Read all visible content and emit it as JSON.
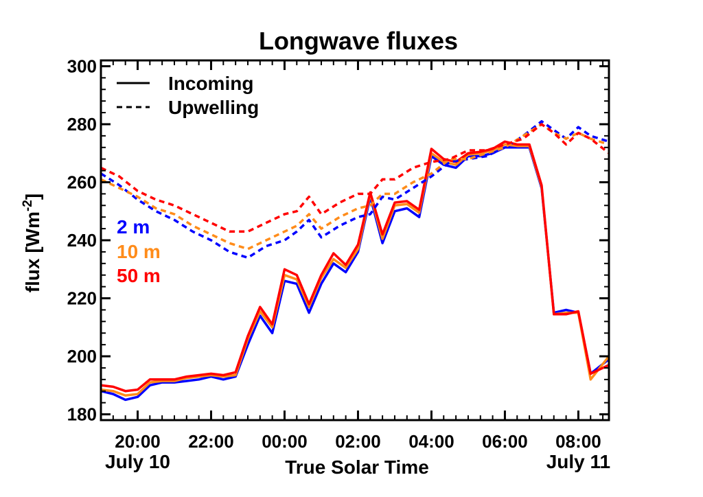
{
  "chart_data": {
    "type": "line",
    "title": "Longwave fluxes",
    "xlabel": "True Solar Time",
    "ylabel": "flux [Wm",
    "ylabel_sup": "-2",
    "ylabel_close": "]",
    "ylim": [
      178,
      302
    ],
    "xlim": [
      "2024-07-10T19:00",
      "2024-07-11T08:50"
    ],
    "yticks": [
      180,
      200,
      220,
      240,
      260,
      280,
      300
    ],
    "xticks": [
      {
        "label": "20:00",
        "time": "2024-07-10T20:00"
      },
      {
        "label": "22:00",
        "time": "2024-07-10T22:00"
      },
      {
        "label": "00:00",
        "time": "2024-07-11T00:00"
      },
      {
        "label": "02:00",
        "time": "2024-07-11T02:00"
      },
      {
        "label": "04:00",
        "time": "2024-07-11T04:00"
      },
      {
        "label": "06:00",
        "time": "2024-07-11T06:00"
      },
      {
        "label": "08:00",
        "time": "2024-07-11T08:00"
      }
    ],
    "date_labels": [
      {
        "label": "July 10",
        "time": "2024-07-10T20:00"
      },
      {
        "label": "July 11",
        "time": "2024-07-11T08:00"
      }
    ],
    "grid": false,
    "legend": {
      "position": "top-left",
      "entries": [
        {
          "label": "Incoming",
          "style": "solid"
        },
        {
          "label": "Upwelling",
          "style": "dashed"
        }
      ]
    },
    "height_labels": [
      {
        "label": "2 m",
        "color": "#0000ff"
      },
      {
        "label": "10 m",
        "color": "#ff8c1a"
      },
      {
        "label": "50 m",
        "color": "#ff0000"
      }
    ],
    "series": [
      {
        "type": "Incoming",
        "height": "2 m",
        "color": "#0000ff",
        "style": "solid",
        "x": [
          "2024-07-10T19:00",
          "2024-07-10T19:20",
          "2024-07-10T19:40",
          "2024-07-10T20:00",
          "2024-07-10T20:20",
          "2024-07-10T20:40",
          "2024-07-10T21:00",
          "2024-07-10T21:20",
          "2024-07-10T21:40",
          "2024-07-10T22:00",
          "2024-07-10T22:20",
          "2024-07-10T22:40",
          "2024-07-10T23:00",
          "2024-07-10T23:20",
          "2024-07-10T23:40",
          "2024-07-11T00:00",
          "2024-07-11T00:20",
          "2024-07-11T00:40",
          "2024-07-11T01:00",
          "2024-07-11T01:20",
          "2024-07-11T01:40",
          "2024-07-11T02:00",
          "2024-07-11T02:20",
          "2024-07-11T02:40",
          "2024-07-11T03:00",
          "2024-07-11T03:20",
          "2024-07-11T03:40",
          "2024-07-11T04:00",
          "2024-07-11T04:20",
          "2024-07-11T04:40",
          "2024-07-11T05:00",
          "2024-07-11T05:20",
          "2024-07-11T05:40",
          "2024-07-11T06:00",
          "2024-07-11T06:20",
          "2024-07-11T06:40",
          "2024-07-11T07:00",
          "2024-07-11T07:20",
          "2024-07-11T07:40",
          "2024-07-11T08:00",
          "2024-07-11T08:20",
          "2024-07-11T08:50"
        ],
        "values": [
          188,
          187,
          185,
          186,
          190,
          191,
          191,
          191.5,
          192,
          193,
          192,
          193,
          204,
          214,
          208,
          226,
          225,
          215,
          225,
          232,
          229,
          236,
          255,
          239,
          250,
          251,
          248,
          269,
          266,
          265,
          269,
          269,
          270,
          272,
          272,
          272,
          258,
          215,
          216,
          215,
          194,
          199
        ]
      },
      {
        "type": "Incoming",
        "height": "10 m",
        "color": "#ff8c1a",
        "style": "solid",
        "x": [
          "2024-07-10T19:00",
          "2024-07-10T19:20",
          "2024-07-10T19:40",
          "2024-07-10T20:00",
          "2024-07-10T20:20",
          "2024-07-10T20:40",
          "2024-07-10T21:00",
          "2024-07-10T21:20",
          "2024-07-10T21:40",
          "2024-07-10T22:00",
          "2024-07-10T22:20",
          "2024-07-10T22:40",
          "2024-07-10T23:00",
          "2024-07-10T23:20",
          "2024-07-10T23:40",
          "2024-07-11T00:00",
          "2024-07-11T00:20",
          "2024-07-11T00:40",
          "2024-07-11T01:00",
          "2024-07-11T01:20",
          "2024-07-11T01:40",
          "2024-07-11T02:00",
          "2024-07-11T02:20",
          "2024-07-11T02:40",
          "2024-07-11T03:00",
          "2024-07-11T03:20",
          "2024-07-11T03:40",
          "2024-07-11T04:00",
          "2024-07-11T04:20",
          "2024-07-11T04:40",
          "2024-07-11T05:00",
          "2024-07-11T05:20",
          "2024-07-11T05:40",
          "2024-07-11T06:00",
          "2024-07-11T06:20",
          "2024-07-11T06:40",
          "2024-07-11T07:00",
          "2024-07-11T07:20",
          "2024-07-11T07:40",
          "2024-07-11T08:00",
          "2024-07-11T08:20",
          "2024-07-11T08:50"
        ],
        "values": [
          188.5,
          188,
          186.5,
          187,
          191,
          191.5,
          191.5,
          192.5,
          193,
          193.5,
          193,
          193.5,
          206,
          215.5,
          210,
          228,
          226.5,
          217,
          227,
          233.5,
          230.5,
          237,
          256,
          240.5,
          252,
          252.5,
          249.5,
          270,
          267,
          266,
          269.5,
          270,
          271,
          273,
          272.5,
          272.5,
          258.5,
          214.5,
          215,
          215,
          192,
          200
        ]
      },
      {
        "type": "Incoming",
        "height": "50 m",
        "color": "#ff0000",
        "style": "solid",
        "x": [
          "2024-07-10T19:00",
          "2024-07-10T19:20",
          "2024-07-10T19:40",
          "2024-07-10T20:00",
          "2024-07-10T20:20",
          "2024-07-10T20:40",
          "2024-07-10T21:00",
          "2024-07-10T21:20",
          "2024-07-10T21:40",
          "2024-07-10T22:00",
          "2024-07-10T22:20",
          "2024-07-10T22:40",
          "2024-07-10T23:00",
          "2024-07-10T23:20",
          "2024-07-10T23:40",
          "2024-07-11T00:00",
          "2024-07-11T00:20",
          "2024-07-11T00:40",
          "2024-07-11T01:00",
          "2024-07-11T01:20",
          "2024-07-11T01:40",
          "2024-07-11T02:00",
          "2024-07-11T02:20",
          "2024-07-11T02:40",
          "2024-07-11T03:00",
          "2024-07-11T03:20",
          "2024-07-11T03:40",
          "2024-07-11T04:00",
          "2024-07-11T04:20",
          "2024-07-11T04:40",
          "2024-07-11T05:00",
          "2024-07-11T05:20",
          "2024-07-11T05:40",
          "2024-07-11T06:00",
          "2024-07-11T06:20",
          "2024-07-11T06:40",
          "2024-07-11T07:00",
          "2024-07-11T07:20",
          "2024-07-11T07:40",
          "2024-07-11T08:00",
          "2024-07-11T08:20",
          "2024-07-11T08:50"
        ],
        "values": [
          190,
          189.5,
          188,
          188.5,
          192,
          192,
          192,
          193,
          193.5,
          194,
          193.5,
          194.5,
          207,
          217,
          211,
          230,
          228,
          218,
          228,
          235.5,
          231.5,
          238.5,
          256.5,
          242,
          253,
          253.5,
          250.5,
          271.5,
          268,
          267,
          270,
          270.5,
          271.5,
          274,
          273,
          273,
          259,
          214.5,
          214.5,
          215.5,
          194,
          197
        ]
      },
      {
        "type": "Upwelling",
        "height": "2 m",
        "color": "#0000ff",
        "style": "dashed",
        "x": [
          "2024-07-10T19:00",
          "2024-07-10T19:30",
          "2024-07-10T20:00",
          "2024-07-10T20:30",
          "2024-07-10T21:00",
          "2024-07-10T21:30",
          "2024-07-10T22:00",
          "2024-07-10T22:30",
          "2024-07-10T23:00",
          "2024-07-10T23:30",
          "2024-07-11T00:00",
          "2024-07-11T00:20",
          "2024-07-11T00:40",
          "2024-07-11T01:00",
          "2024-07-11T01:30",
          "2024-07-11T02:00",
          "2024-07-11T02:20",
          "2024-07-11T02:40",
          "2024-07-11T03:00",
          "2024-07-11T03:30",
          "2024-07-11T04:00",
          "2024-07-11T04:30",
          "2024-07-11T05:00",
          "2024-07-11T05:30",
          "2024-07-11T06:00",
          "2024-07-11T06:30",
          "2024-07-11T07:00",
          "2024-07-11T07:20",
          "2024-07-11T07:40",
          "2024-07-11T08:00",
          "2024-07-11T08:20",
          "2024-07-11T08:50"
        ],
        "values": [
          263,
          259,
          254,
          250,
          247,
          243,
          240,
          236,
          234,
          238,
          240,
          243,
          247,
          241,
          245,
          248,
          249,
          255,
          254,
          258,
          262,
          267,
          268,
          269,
          272,
          276,
          281,
          278,
          275,
          279,
          276,
          274
        ]
      },
      {
        "type": "Upwelling",
        "height": "10 m",
        "color": "#ff8c1a",
        "style": "dashed",
        "x": [
          "2024-07-10T19:00",
          "2024-07-10T19:30",
          "2024-07-10T20:00",
          "2024-07-10T20:30",
          "2024-07-10T21:00",
          "2024-07-10T21:30",
          "2024-07-10T22:00",
          "2024-07-10T22:30",
          "2024-07-10T23:00",
          "2024-07-10T23:30",
          "2024-07-11T00:00",
          "2024-07-11T00:20",
          "2024-07-11T00:40",
          "2024-07-11T01:00",
          "2024-07-11T01:30",
          "2024-07-11T02:00",
          "2024-07-11T02:20",
          "2024-07-11T02:40",
          "2024-07-11T03:00",
          "2024-07-11T03:30",
          "2024-07-11T04:00",
          "2024-07-11T04:30",
          "2024-07-11T05:00",
          "2024-07-11T05:30",
          "2024-07-11T06:00",
          "2024-07-11T06:30",
          "2024-07-11T07:00",
          "2024-07-11T07:20",
          "2024-07-11T07:40",
          "2024-07-11T08:00",
          "2024-07-11T08:20",
          "2024-07-11T08:50"
        ],
        "values": [
          261,
          258,
          255,
          251,
          249,
          245,
          242,
          239,
          237,
          240,
          243,
          245,
          249,
          244,
          248,
          251,
          252,
          256,
          256,
          260,
          263,
          268,
          268,
          270,
          272,
          276,
          280,
          277,
          275,
          277,
          275,
          273
        ]
      },
      {
        "type": "Upwelling",
        "height": "50 m",
        "color": "#ff0000",
        "style": "dashed",
        "x": [
          "2024-07-10T19:00",
          "2024-07-10T19:30",
          "2024-07-10T20:00",
          "2024-07-10T20:30",
          "2024-07-10T21:00",
          "2024-07-10T21:30",
          "2024-07-10T22:00",
          "2024-07-10T22:30",
          "2024-07-10T23:00",
          "2024-07-10T23:30",
          "2024-07-11T00:00",
          "2024-07-11T00:20",
          "2024-07-11T00:40",
          "2024-07-11T01:00",
          "2024-07-11T01:30",
          "2024-07-11T02:00",
          "2024-07-11T02:20",
          "2024-07-11T02:40",
          "2024-07-11T03:00",
          "2024-07-11T03:30",
          "2024-07-11T04:00",
          "2024-07-11T04:30",
          "2024-07-11T05:00",
          "2024-07-11T05:30",
          "2024-07-11T06:00",
          "2024-07-11T06:30",
          "2024-07-11T07:00",
          "2024-07-11T07:20",
          "2024-07-11T07:40",
          "2024-07-11T08:00",
          "2024-07-11T08:20",
          "2024-07-11T08:50"
        ],
        "values": [
          265,
          262,
          257,
          254,
          252,
          249,
          246,
          243,
          243,
          246,
          249,
          250,
          255,
          249,
          253,
          256,
          256,
          261,
          261,
          265,
          267,
          268,
          271,
          271,
          273,
          275,
          280,
          277,
          273,
          277,
          275,
          270
        ]
      }
    ]
  }
}
